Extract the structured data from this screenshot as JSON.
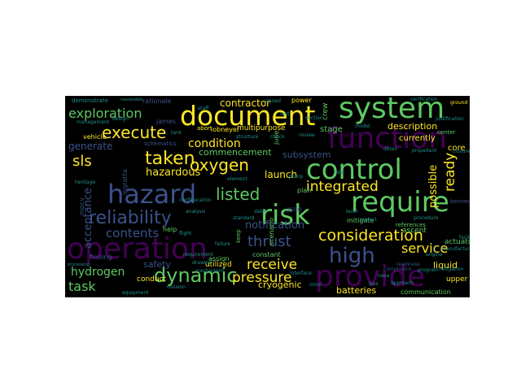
{
  "colors": {
    "background": "#000000",
    "page": "#ffffff",
    "palette": [
      "#440154",
      "#3b528b",
      "#21918c",
      "#5ec962",
      "#fde725"
    ]
  },
  "words": {
    "system": "system",
    "document": "document",
    "function": "function",
    "control": "control",
    "hazard": "hazard",
    "require": "require",
    "risk": "risk",
    "operation": "operation",
    "provide": "provide",
    "reliability": "reliability",
    "dynamic": "dynamic",
    "consideration": "consideration",
    "high": "high",
    "execute": "execute",
    "taken": "taken",
    "oxygen": "oxygen",
    "exploration": "exploration",
    "listed": "listed",
    "integrated": "integrated",
    "pressure": "pressure",
    "thrust": "thrust",
    "receive": "receive",
    "service": "service",
    "contents": "contents",
    "condition": "condition",
    "hazardous": "hazardous",
    "sls": "sls",
    "task": "task",
    "hydrogen": "hydrogen",
    "notification": "notification",
    "commencement": "commencement",
    "contractor": "contractor",
    "description": "description",
    "possible": "possible",
    "ready": "ready",
    "launch": "launch",
    "subsystem": "subsystem",
    "cryogenic": "cryogenic",
    "batteries": "batteries",
    "liquid": "liquid",
    "generate": "generate",
    "acceptance": "acceptance",
    "demonstrate": "demonstrate",
    "rationale": "rationale",
    "power": "power",
    "crew": "crew",
    "stage": "stage",
    "core": "core",
    "currently": "currently",
    "multipurpose": "multipurpose",
    "vehicle": "vehicle",
    "james": "james",
    "ingratta": "ingratta",
    "mpcv": "mpcv",
    "schematics": "schematics",
    "safety": "safety",
    "conduct": "conduct",
    "utilized": "utilized",
    "communication": "communication",
    "upper": "upper",
    "actuation": "actuation",
    "ascent": "ascent",
    "mitigate": "mitigate",
    "finding": "finding",
    "help": "help",
    "assign": "assign",
    "constant": "constant",
    "keep": "keep",
    "references": "references",
    "scenario": "scenario",
    "plan": "plan",
    "june": "june",
    "kennedy": "kennedy",
    "abort": "abort",
    "ground": "ground",
    "iobneyer": "iobneyer",
    "valve": "valve",
    "standard": "standard",
    "facility": "facility",
    "verification": "verification",
    "reasonable": "reasonable",
    "readiness": "readiness",
    "design": "design",
    "approach": "approach",
    "center": "center",
    "test": "test",
    "review": "review",
    "orion": "orion",
    "failure": "failure",
    "nasa": "nasa",
    "loss": "loss",
    "engine": "engine",
    "program": "program",
    "mission": "mission",
    "element": "element",
    "data": "data",
    "gsdo": "gsdo",
    "requirement": "requirement",
    "level": "level",
    "flight": "flight",
    "configuration": "configuration",
    "analysis": "analysis",
    "interface": "interface",
    "compliance": "compliance",
    "project": "project",
    "closure": "closure",
    "procedure": "procedure",
    "model": "model",
    "heritage": "heritage",
    "propellant": "propellant",
    "justification": "justification",
    "management": "management",
    "manufacture": "manufacture",
    "structure": "structure",
    "mitigation": "mitigation",
    "staff": "staff",
    "check": "check",
    "signed": "signed",
    "section": "section",
    "detail": "detail",
    "phase": "phase",
    "drawing": "drawing",
    "equipment": "equipment",
    "mechanism": "mechanism",
    "processing": "processing",
    "rate": "rate",
    "tank": "tank",
    "pump": "pump"
  }
}
